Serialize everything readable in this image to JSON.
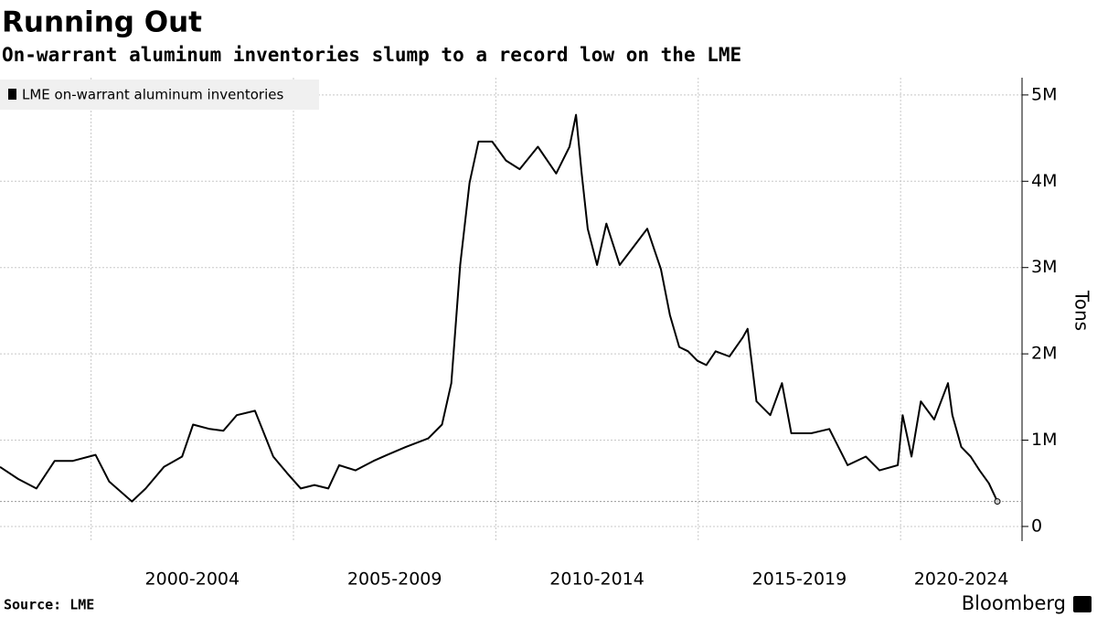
{
  "chart_data": {
    "type": "line",
    "title": "Running Out",
    "subtitle": "On-warrant aluminum inventories slump to a record low on the LME",
    "y_label": "Tons",
    "source": "Source: LME",
    "brand": "Bloomberg",
    "categories": [
      "2000-2004",
      "2005-2009",
      "2010-2014",
      "2015-2019",
      "2020-2024"
    ],
    "x": [
      1997.75,
      1998.2,
      1998.65,
      1999.1,
      1999.55,
      2000.11,
      2000.45,
      2001.01,
      2001.35,
      2001.8,
      2002.25,
      2002.52,
      2002.93,
      2003.27,
      2003.6,
      2004.05,
      2004.5,
      2004.84,
      2005.18,
      2005.52,
      2005.86,
      2006.13,
      2006.53,
      2006.98,
      2007.32,
      2007.77,
      2008.33,
      2008.67,
      2008.9,
      2009.12,
      2009.35,
      2009.57,
      2009.91,
      2010.25,
      2010.59,
      2011.04,
      2011.49,
      2011.82,
      2011.98,
      2012.12,
      2012.27,
      2012.5,
      2012.73,
      2013.06,
      2013.4,
      2013.74,
      2014.08,
      2014.3,
      2014.53,
      2014.75,
      2014.98,
      2015.2,
      2015.43,
      2015.77,
      2016.1,
      2016.22,
      2016.44,
      2016.78,
      2017.07,
      2017.3,
      2017.79,
      2018.24,
      2018.69,
      2019.14,
      2019.48,
      2019.93,
      2020.05,
      2020.27,
      2020.5,
      2020.83,
      2021.17,
      2021.28,
      2021.5,
      2021.73,
      2021.95,
      2022.18,
      2022.39
    ],
    "series": [
      {
        "name": "LME on-warrant aluminum inventories",
        "color": "#000000",
        "values": [
          690000,
          550000,
          440000,
          760000,
          760000,
          830000,
          520000,
          290000,
          440000,
          690000,
          810000,
          1180000,
          1130000,
          1110000,
          1290000,
          1340000,
          810000,
          620000,
          440000,
          480000,
          440000,
          710000,
          650000,
          760000,
          830000,
          920000,
          1020000,
          1180000,
          1660000,
          3030000,
          3980000,
          4460000,
          4460000,
          4240000,
          4140000,
          4400000,
          4090000,
          4400000,
          4770000,
          4090000,
          3450000,
          3030000,
          3510000,
          3030000,
          3240000,
          3450000,
          2980000,
          2450000,
          2080000,
          2030000,
          1920000,
          1870000,
          2030000,
          1970000,
          2190000,
          2290000,
          1450000,
          1290000,
          1660000,
          1080000,
          1080000,
          1130000,
          710000,
          810000,
          650000,
          710000,
          1290000,
          810000,
          1450000,
          1240000,
          1660000,
          1290000,
          920000,
          810000,
          650000,
          500000,
          290000
        ]
      }
    ],
    "xlim": [
      1997.75,
      2023.0
    ],
    "xticks": [
      2000,
      2005,
      2010,
      2015,
      2020
    ],
    "ylim": [
      -170000,
      5200000
    ],
    "yticks": [
      0,
      {
        "value": 1000000,
        "label": "1M"
      },
      {
        "value": 2000000,
        "label": "2M"
      },
      {
        "value": 3000000,
        "label": "3M"
      },
      {
        "value": 4000000,
        "label": "4M"
      },
      {
        "value": 5000000,
        "label": "5M"
      }
    ],
    "grid": true,
    "legend": "top-left"
  }
}
